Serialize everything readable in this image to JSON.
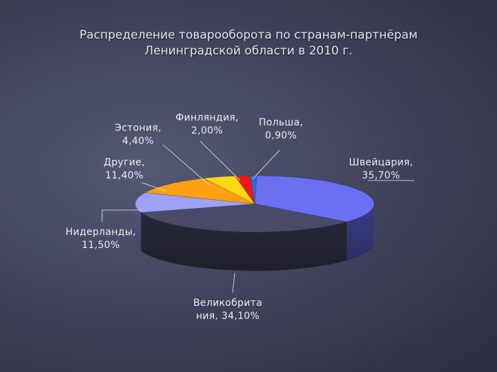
{
  "title_line1": "Распределение товарооборота по странам-партнёрам",
  "title_line2": "Ленинградской области в 2010 г.",
  "chart_data": {
    "type": "pie",
    "title": "Распределение товарооборота по странам-партнёрам Ленинградской области в 2010 г.",
    "slices": [
      {
        "name": "Швейцария",
        "value": 35.7,
        "label_lines": [
          "Швейцария,",
          "35,70%"
        ],
        "color": "#6b6ff2"
      },
      {
        "name": "Великобритания",
        "value": 34.1,
        "label_lines": [
          "Великобрита",
          "ния, 34,10%"
        ],
        "color": "#484a67"
      },
      {
        "name": "Нидерланды",
        "value": 11.5,
        "label_lines": [
          "Нидерланды,",
          "11,50%"
        ],
        "color": "#9ea2f5"
      },
      {
        "name": "Другие",
        "value": 11.4,
        "label_lines": [
          "Другие,",
          "11,40%"
        ],
        "color": "#ffa011"
      },
      {
        "name": "Эстония",
        "value": 4.4,
        "label_lines": [
          "Эстония,",
          "4,40%"
        ],
        "color": "#ffd814"
      },
      {
        "name": "Финляндия",
        "value": 2.0,
        "label_lines": [
          "Финляндия,",
          "2,00%"
        ],
        "color": "#e8191f"
      },
      {
        "name": "Польша",
        "value": 0.9,
        "label_lines": [
          "Польша,",
          "0,90%"
        ],
        "color": "#2a6cd8"
      }
    ]
  }
}
